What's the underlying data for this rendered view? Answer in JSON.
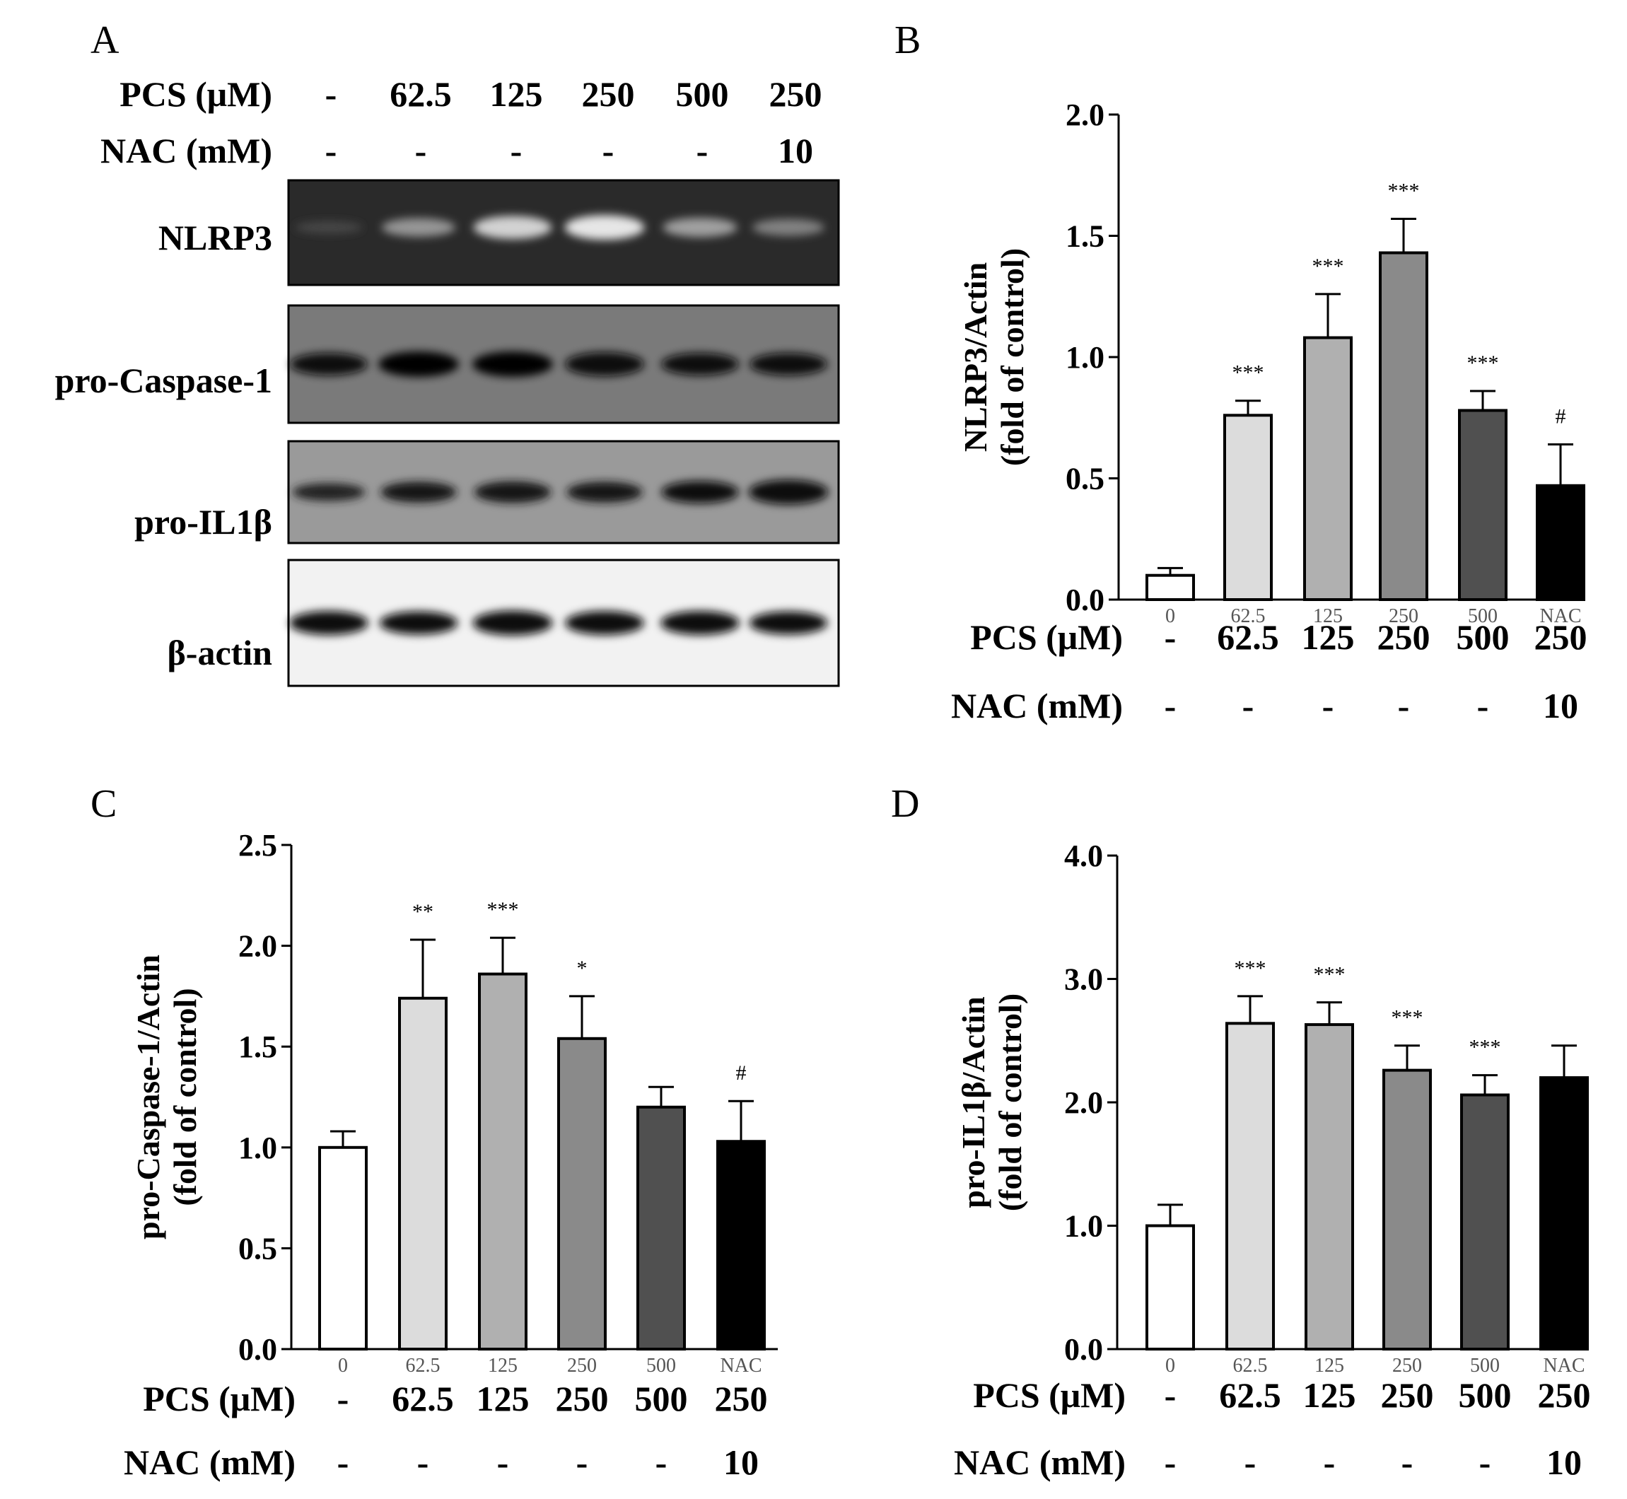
{
  "figure": {
    "panel_letters": [
      "A",
      "B",
      "C",
      "D"
    ],
    "treatments": {
      "pcs_label": "PCS (μM)",
      "nac_label": "NAC (mM)",
      "pcs": [
        "-",
        "62.5",
        "125",
        "250",
        "500",
        "250"
      ],
      "nac": [
        "-",
        "-",
        "-",
        "-",
        "-",
        "10"
      ]
    },
    "blot": {
      "rows": [
        {
          "label": "NLRP3",
          "intensity": [
            0.15,
            0.55,
            0.85,
            0.95,
            0.6,
            0.45
          ]
        },
        {
          "label": "pro-Caspase-1",
          "intensity": [
            0.8,
            1.0,
            1.0,
            0.9,
            0.8,
            0.8
          ]
        },
        {
          "label": "pro-IL1β",
          "intensity": [
            0.5,
            0.7,
            0.75,
            0.7,
            0.8,
            0.95
          ]
        },
        {
          "label": "β-actin",
          "intensity": [
            0.9,
            0.85,
            0.95,
            0.9,
            0.9,
            0.85
          ]
        }
      ]
    }
  },
  "chart_data": [
    {
      "panel": "B",
      "type": "bar",
      "ylabel": "NLRP3/Actin",
      "ylabel2": "(fold of control)",
      "ylim": [
        0,
        2.0
      ],
      "yticks": [
        "0.0",
        "0.5",
        "1.0",
        "1.5",
        "2.0"
      ],
      "categories": [
        "0",
        "62.5",
        "125",
        "250",
        "500",
        "NAC"
      ],
      "values": [
        0.1,
        0.76,
        1.08,
        1.43,
        0.78,
        0.47
      ],
      "errors": [
        0.03,
        0.06,
        0.18,
        0.14,
        0.08,
        0.17
      ],
      "colors": [
        "#ffffff",
        "#dcdcdc",
        "#b0b0b0",
        "#8a8a8a",
        "#505050",
        "#000000"
      ],
      "significance": [
        "",
        "***",
        "***",
        "***",
        "***",
        "#"
      ]
    },
    {
      "panel": "C",
      "type": "bar",
      "ylabel": "pro-Caspase-1/Actin",
      "ylabel2": "(fold of control)",
      "ylim": [
        0,
        2.5
      ],
      "yticks": [
        "0.0",
        "0.5",
        "1.0",
        "1.5",
        "2.0",
        "2.5"
      ],
      "categories": [
        "0",
        "62.5",
        "125",
        "250",
        "500",
        "NAC"
      ],
      "values": [
        1.0,
        1.74,
        1.86,
        1.54,
        1.2,
        1.03
      ],
      "errors": [
        0.08,
        0.29,
        0.18,
        0.21,
        0.1,
        0.2
      ],
      "colors": [
        "#ffffff",
        "#dcdcdc",
        "#b0b0b0",
        "#8a8a8a",
        "#505050",
        "#000000"
      ],
      "significance": [
        "",
        "**",
        "***",
        "*",
        "",
        "#"
      ]
    },
    {
      "panel": "D",
      "type": "bar",
      "ylabel": "pro-IL1β/Actin",
      "ylabel2": "(fold of control)",
      "ylim": [
        0,
        4.0
      ],
      "yticks": [
        "0.0",
        "1.0",
        "2.0",
        "3.0",
        "4.0"
      ],
      "categories": [
        "0",
        "62.5",
        "125",
        "250",
        "500",
        "NAC"
      ],
      "values": [
        1.0,
        2.64,
        2.63,
        2.26,
        2.06,
        2.2
      ],
      "errors": [
        0.17,
        0.22,
        0.18,
        0.2,
        0.16,
        0.26
      ],
      "colors": [
        "#ffffff",
        "#dcdcdc",
        "#b0b0b0",
        "#8a8a8a",
        "#505050",
        "#000000"
      ],
      "significance": [
        "",
        "***",
        "***",
        "***",
        "***",
        ""
      ]
    }
  ]
}
